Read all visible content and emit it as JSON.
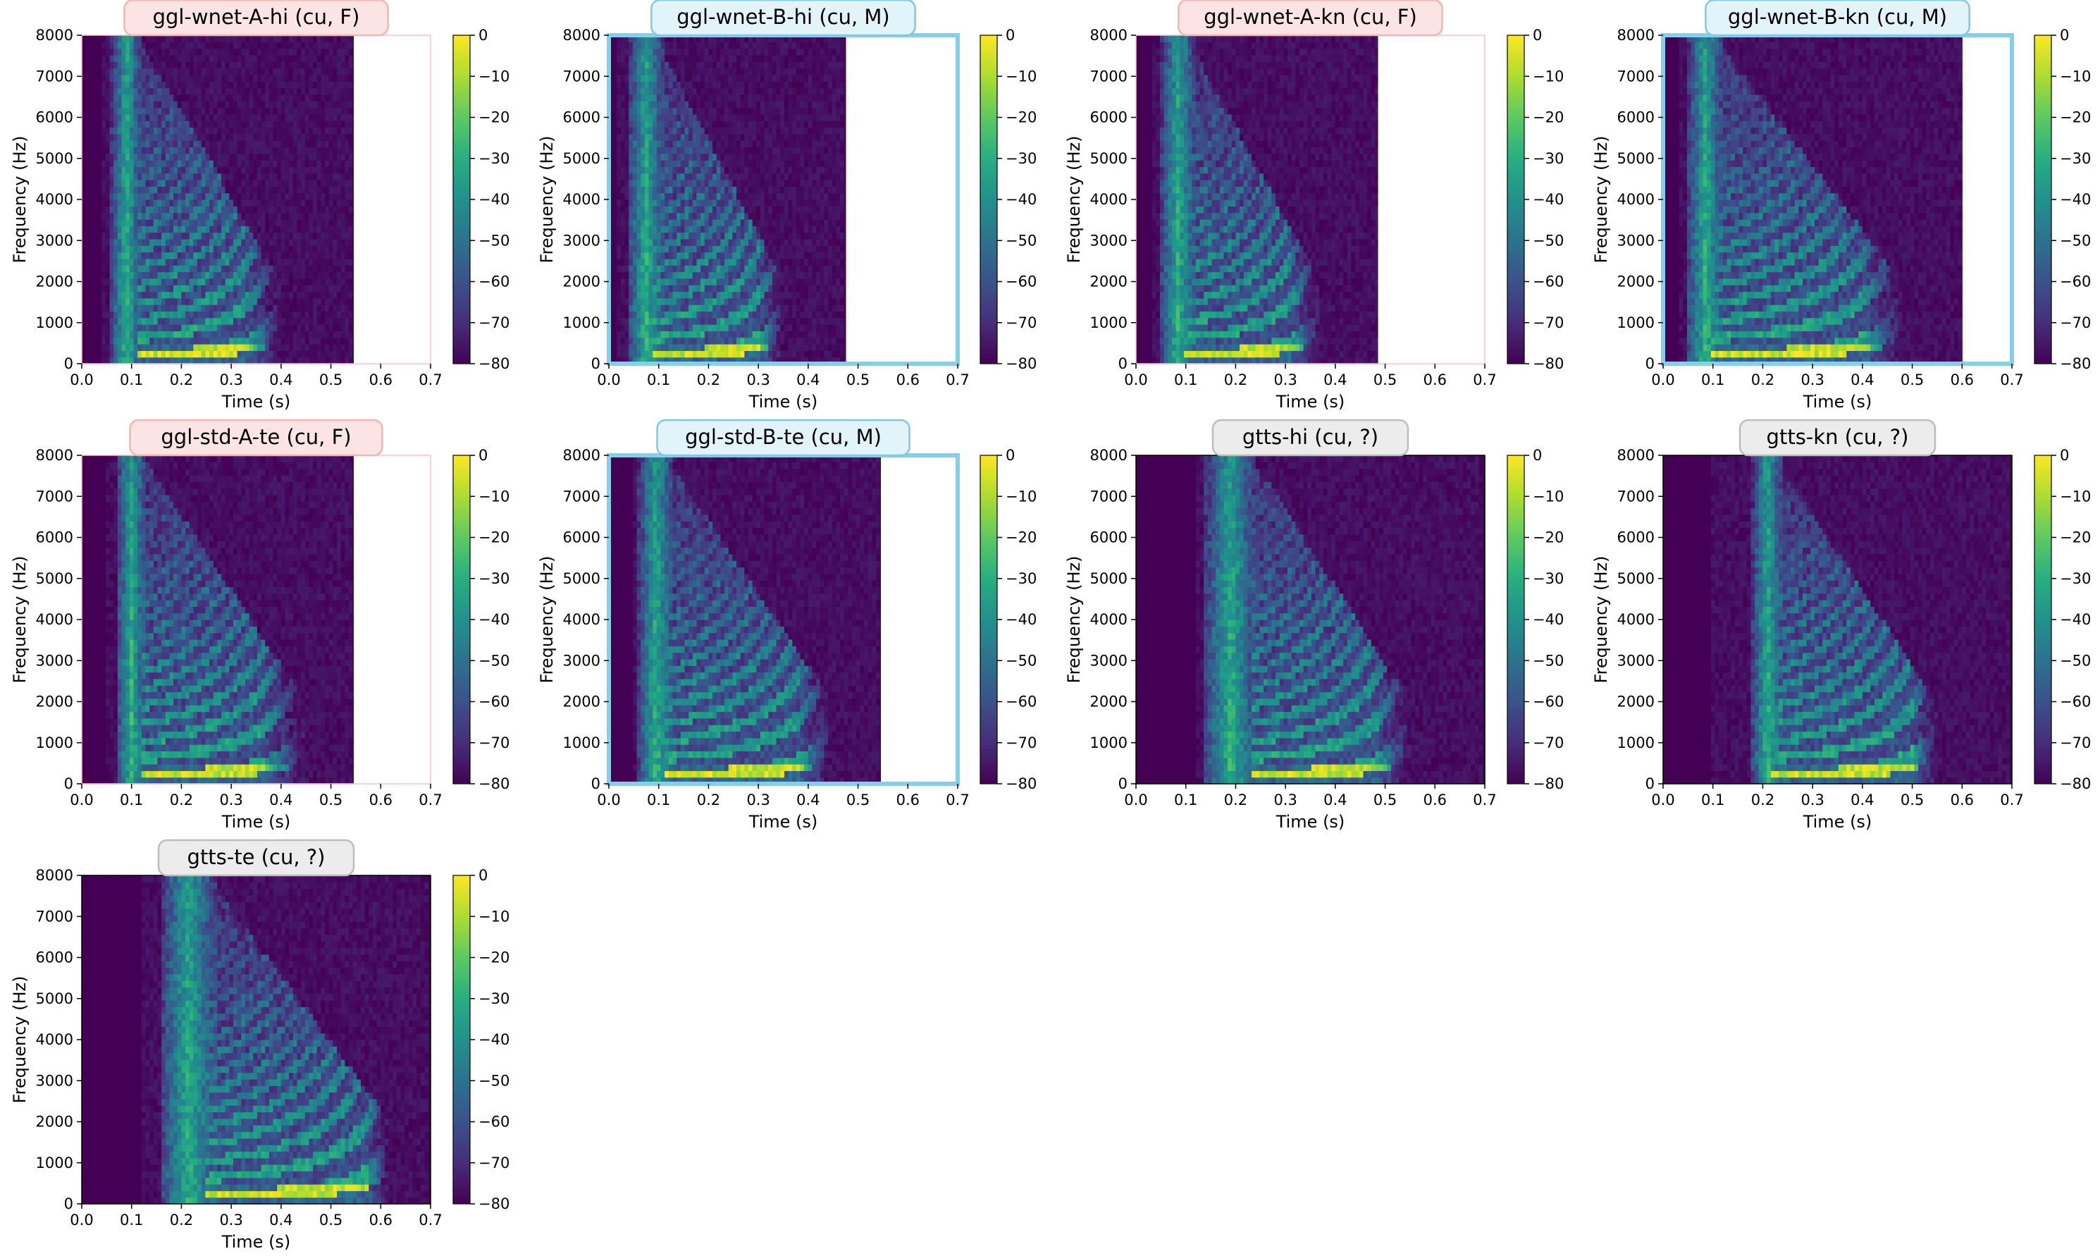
{
  "figure": {
    "xlabel": "Time (s)",
    "ylabel": "Frequency (Hz)",
    "colors": {
      "female_title_bg": "#fde4e4",
      "female_title_border": "#f4b4b4",
      "male_title_bg": "#e3f3fa",
      "male_title_border": "#7fc8e6",
      "unknown_title_bg": "#ececec",
      "unknown_title_border": "#bdbdbd",
      "male_frame": "#87ceeb",
      "female_frame": "#ffc0cb"
    }
  },
  "chart_data": [
    {
      "type": "heatmap",
      "title": "ggl-wnet-A-hi (cu, F)",
      "gender": "F",
      "xlabel": "Time (s)",
      "ylabel": "Frequency (Hz)",
      "xlim": [
        0,
        0.7
      ],
      "ylim": [
        0,
        8000
      ],
      "xticks": [
        "0.0",
        "0.1",
        "0.2",
        "0.3",
        "0.4",
        "0.5",
        "0.6",
        "0.7"
      ],
      "yticks": [
        "0",
        "1000",
        "2000",
        "3000",
        "4000",
        "5000",
        "6000",
        "7000",
        "8000"
      ],
      "colorbar": {
        "range": [
          -80,
          0
        ],
        "ticks": [
          "0",
          "−10",
          "−20",
          "−30",
          "−40",
          "−50",
          "−60",
          "−70",
          "−80"
        ],
        "colormap": "viridis"
      },
      "duration": 0.545,
      "onset": 0.04,
      "burst": [
        0.06,
        0.12
      ],
      "voiced": [
        0.11,
        0.33
      ],
      "tail_end": 0.4,
      "frame": "female"
    },
    {
      "type": "heatmap",
      "title": "ggl-wnet-B-hi (cu, M)",
      "gender": "M",
      "xlabel": "Time (s)",
      "ylabel": "Frequency (Hz)",
      "xlim": [
        0,
        0.7
      ],
      "ylim": [
        0,
        8000
      ],
      "xticks": [
        "0.0",
        "0.1",
        "0.2",
        "0.3",
        "0.4",
        "0.5",
        "0.6",
        "0.7"
      ],
      "yticks": [
        "0",
        "1000",
        "2000",
        "3000",
        "4000",
        "5000",
        "6000",
        "7000",
        "8000"
      ],
      "colorbar": {
        "range": [
          -80,
          0
        ],
        "ticks": [
          "0",
          "−10",
          "−20",
          "−30",
          "−40",
          "−50",
          "−60",
          "−70",
          "−80"
        ],
        "colormap": "viridis"
      },
      "duration": 0.475,
      "onset": 0.02,
      "burst": [
        0.04,
        0.11
      ],
      "voiced": [
        0.09,
        0.3
      ],
      "tail_end": 0.35,
      "frame": "male"
    },
    {
      "type": "heatmap",
      "title": "ggl-wnet-A-kn (cu, F)",
      "gender": "F",
      "xlabel": "Time (s)",
      "ylabel": "Frequency (Hz)",
      "xlim": [
        0,
        0.7
      ],
      "ylim": [
        0,
        8000
      ],
      "xticks": [
        "0.0",
        "0.1",
        "0.2",
        "0.3",
        "0.4",
        "0.5",
        "0.6",
        "0.7"
      ],
      "yticks": [
        "0",
        "1000",
        "2000",
        "3000",
        "4000",
        "5000",
        "6000",
        "7000",
        "8000"
      ],
      "colorbar": {
        "range": [
          -80,
          0
        ],
        "ticks": [
          "0",
          "−10",
          "−20",
          "−30",
          "−40",
          "−50",
          "−60",
          "−70",
          "−80"
        ],
        "colormap": "viridis"
      },
      "duration": 0.485,
      "onset": 0.03,
      "burst": [
        0.05,
        0.12
      ],
      "voiced": [
        0.1,
        0.31
      ],
      "tail_end": 0.37,
      "frame": "female"
    },
    {
      "type": "heatmap",
      "title": "ggl-wnet-B-kn (cu, M)",
      "gender": "M",
      "xlabel": "Time (s)",
      "ylabel": "Frequency (Hz)",
      "xlim": [
        0,
        0.7
      ],
      "ylim": [
        0,
        8000
      ],
      "xticks": [
        "0.0",
        "0.1",
        "0.2",
        "0.3",
        "0.4",
        "0.5",
        "0.6",
        "0.7"
      ],
      "yticks": [
        "0",
        "1000",
        "2000",
        "3000",
        "4000",
        "5000",
        "6000",
        "7000",
        "8000"
      ],
      "colorbar": {
        "range": [
          -80,
          0
        ],
        "ticks": [
          "0",
          "−10",
          "−20",
          "−30",
          "−40",
          "−50",
          "−60",
          "−70",
          "−80"
        ],
        "colormap": "viridis"
      },
      "duration": 0.6,
      "onset": 0.03,
      "burst": [
        0.05,
        0.12
      ],
      "voiced": [
        0.1,
        0.4
      ],
      "tail_end": 0.48,
      "frame": "male"
    },
    {
      "type": "heatmap",
      "title": "ggl-std-A-te (cu, F)",
      "gender": "F",
      "xlabel": "Time (s)",
      "ylabel": "Frequency (Hz)",
      "xlim": [
        0,
        0.7
      ],
      "ylim": [
        0,
        8000
      ],
      "xticks": [
        "0.0",
        "0.1",
        "0.2",
        "0.3",
        "0.4",
        "0.5",
        "0.6",
        "0.7"
      ],
      "yticks": [
        "0",
        "1000",
        "2000",
        "3000",
        "4000",
        "5000",
        "6000",
        "7000",
        "8000"
      ],
      "colorbar": {
        "range": [
          -80,
          0
        ],
        "ticks": [
          "0",
          "−10",
          "−20",
          "−30",
          "−40",
          "−50",
          "−60",
          "−70",
          "−80"
        ],
        "colormap": "viridis"
      },
      "duration": 0.545,
      "onset": 0.05,
      "burst": [
        0.07,
        0.13
      ],
      "voiced": [
        0.12,
        0.36
      ],
      "tail_end": 0.45,
      "frame": "female"
    },
    {
      "type": "heatmap",
      "title": "ggl-std-B-te (cu, M)",
      "gender": "M",
      "xlabel": "Time (s)",
      "ylabel": "Frequency (Hz)",
      "xlim": [
        0,
        0.7
      ],
      "ylim": [
        0,
        8000
      ],
      "xticks": [
        "0.0",
        "0.1",
        "0.2",
        "0.3",
        "0.4",
        "0.5",
        "0.6",
        "0.7"
      ],
      "yticks": [
        "0",
        "1000",
        "2000",
        "3000",
        "4000",
        "5000",
        "6000",
        "7000",
        "8000"
      ],
      "colorbar": {
        "range": [
          -80,
          0
        ],
        "ticks": [
          "0",
          "−10",
          "−20",
          "−30",
          "−40",
          "−50",
          "−60",
          "−70",
          "−80"
        ],
        "colormap": "viridis"
      },
      "duration": 0.545,
      "onset": 0.05,
      "burst": [
        0.06,
        0.13
      ],
      "voiced": [
        0.11,
        0.38
      ],
      "tail_end": 0.45,
      "frame": "male"
    },
    {
      "type": "heatmap",
      "title": "gtts-hi (cu, ?)",
      "gender": "?",
      "xlabel": "Time (s)",
      "ylabel": "Frequency (Hz)",
      "xlim": [
        0,
        0.7
      ],
      "ylim": [
        0,
        8000
      ],
      "xticks": [
        "0.0",
        "0.1",
        "0.2",
        "0.3",
        "0.4",
        "0.5",
        "0.6",
        "0.7"
      ],
      "yticks": [
        "0",
        "1000",
        "2000",
        "3000",
        "4000",
        "5000",
        "6000",
        "7000",
        "8000"
      ],
      "colorbar": {
        "range": [
          -80,
          0
        ],
        "ticks": [
          "0",
          "−10",
          "−20",
          "−30",
          "−40",
          "−50",
          "−60",
          "−70",
          "−80"
        ],
        "colormap": "viridis"
      },
      "duration": 0.7,
      "onset": 0.12,
      "burst": [
        0.14,
        0.24
      ],
      "voiced": [
        0.23,
        0.48
      ],
      "tail_end": 0.55,
      "frame": "none"
    },
    {
      "type": "heatmap",
      "title": "gtts-kn (cu, ?)",
      "gender": "?",
      "xlabel": "Time (s)",
      "ylabel": "Frequency (Hz)",
      "xlim": [
        0,
        0.7
      ],
      "ylim": [
        0,
        8000
      ],
      "xticks": [
        "0.0",
        "0.1",
        "0.2",
        "0.3",
        "0.4",
        "0.5",
        "0.6",
        "0.7"
      ],
      "yticks": [
        "0",
        "1000",
        "2000",
        "3000",
        "4000",
        "5000",
        "6000",
        "7000",
        "8000"
      ],
      "colorbar": {
        "range": [
          -80,
          0
        ],
        "ticks": [
          "0",
          "−10",
          "−20",
          "−30",
          "−40",
          "−50",
          "−60",
          "−70",
          "−80"
        ],
        "colormap": "viridis"
      },
      "duration": 0.7,
      "onset": 0.1,
      "burst": [
        0.18,
        0.24
      ],
      "voiced": [
        0.22,
        0.5
      ],
      "tail_end": 0.55,
      "frame": "none"
    },
    {
      "type": "heatmap",
      "title": "gtts-te (cu, ?)",
      "gender": "?",
      "xlabel": "Time (s)",
      "ylabel": "Frequency (Hz)",
      "xlim": [
        0,
        0.7
      ],
      "ylim": [
        0,
        8000
      ],
      "xticks": [
        "0.0",
        "0.1",
        "0.2",
        "0.3",
        "0.4",
        "0.5",
        "0.6",
        "0.7"
      ],
      "yticks": [
        "0",
        "1000",
        "2000",
        "3000",
        "4000",
        "5000",
        "6000",
        "7000",
        "8000"
      ],
      "colorbar": {
        "range": [
          -80,
          0
        ],
        "ticks": [
          "0",
          "−10",
          "−20",
          "−30",
          "−40",
          "−50",
          "−60",
          "−70",
          "−80"
        ],
        "colormap": "viridis"
      },
      "duration": 0.7,
      "onset": 0.12,
      "burst": [
        0.16,
        0.27
      ],
      "voiced": [
        0.25,
        0.57
      ],
      "tail_end": 0.62,
      "frame": "none"
    }
  ]
}
